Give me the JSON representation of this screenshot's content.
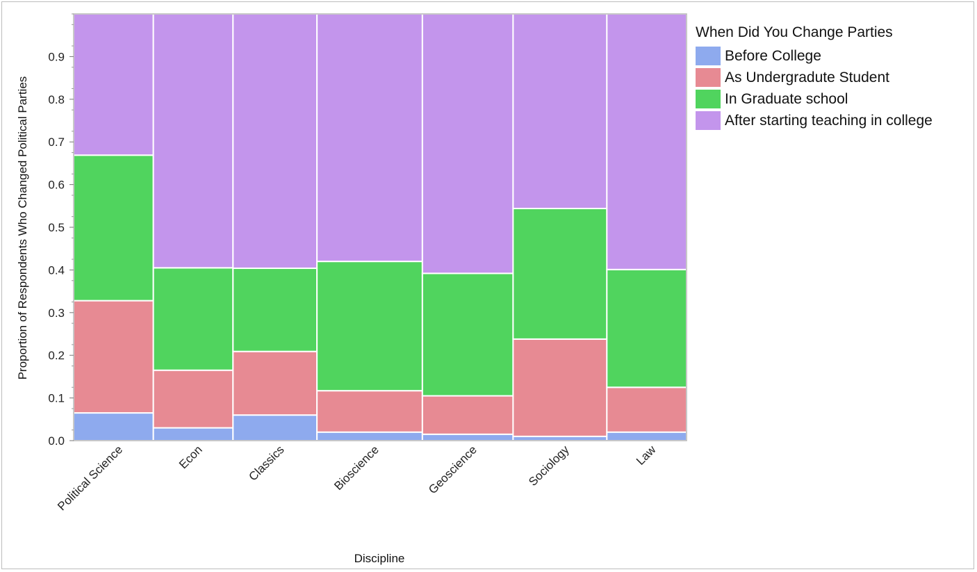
{
  "chart_data": {
    "type": "bar",
    "stacked": true,
    "xlabel": "Discipline",
    "ylabel": "Proportion of Respondents Who Changed Political Parties",
    "ylim": [
      0,
      1
    ],
    "yticks": [
      "0.0",
      "0.1",
      "0.2",
      "0.3",
      "0.4",
      "0.5",
      "0.6",
      "0.7",
      "0.8",
      "0.9"
    ],
    "categories": [
      "Political Science",
      "Econ",
      "Classics",
      "Bioscience",
      "Geoscience",
      "Sociology",
      "Law"
    ],
    "widths": [
      0.13,
      0.13,
      0.137,
      0.172,
      0.148,
      0.153,
      0.13
    ],
    "legend_title": "When Did You Change Parties",
    "legend_position": "right",
    "series": [
      {
        "name": "Before College",
        "color": "#8eaaee",
        "values": [
          0.065,
          0.03,
          0.06,
          0.02,
          0.015,
          0.01,
          0.02
        ]
      },
      {
        "name": "As Undergradute Student",
        "color": "#e78a93",
        "values": [
          0.263,
          0.135,
          0.149,
          0.097,
          0.09,
          0.228,
          0.105
        ]
      },
      {
        "name": "In Graduate school",
        "color": "#50d45e",
        "values": [
          0.341,
          0.24,
          0.195,
          0.303,
          0.287,
          0.306,
          0.276
        ]
      },
      {
        "name": "After starting teaching in college",
        "color": "#c395ec",
        "values": [
          0.331,
          0.595,
          0.596,
          0.58,
          0.608,
          0.456,
          0.599
        ]
      }
    ]
  }
}
